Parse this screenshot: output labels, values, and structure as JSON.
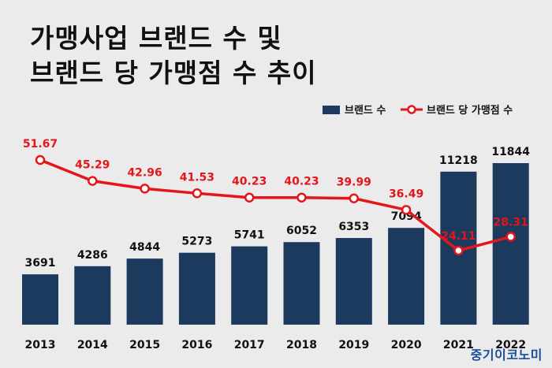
{
  "title_lines": [
    "가맹사업 브랜드 수 및",
    "브랜드 당 가맹점 수 추이"
  ],
  "watermark": "중기이코노미",
  "colors": {
    "bar": "#1b3a5e",
    "line": "#e4161b",
    "background": "#ebebeb",
    "text": "#111111"
  },
  "chart_data": {
    "type": "bar",
    "categories": [
      "2013",
      "2014",
      "2015",
      "2016",
      "2017",
      "2018",
      "2019",
      "2020",
      "2021",
      "2022"
    ],
    "series": [
      {
        "name": "브랜드 수",
        "type": "bar",
        "values": [
          3691,
          4286,
          4844,
          5273,
          5741,
          6052,
          6353,
          7094,
          11218,
          11844
        ]
      },
      {
        "name": "브랜드 당 가맹점 수",
        "type": "line",
        "values": [
          51.67,
          45.29,
          42.96,
          41.53,
          40.23,
          40.23,
          39.99,
          36.49,
          24.11,
          28.31
        ]
      }
    ],
    "value_labels": {
      "bars": [
        "3691",
        "4286",
        "4844",
        "5273",
        "5741",
        "6052",
        "6353",
        "7094",
        "11218",
        "11844"
      ],
      "line": [
        "51.67",
        "45.29",
        "42.96",
        "41.53",
        "40.23",
        "40.23",
        "39.99",
        "36.49",
        "24.11",
        "28.31"
      ]
    },
    "title": "가맹사업 브랜드 수 및 브랜드 당 가맹점 수 추이",
    "legend": {
      "placement": "top-right",
      "items": [
        "브랜드 수",
        "브랜드 당 가맹점 수"
      ]
    },
    "xlabel": "",
    "ylabel": "",
    "ylim_bars": [
      0,
      13000
    ],
    "ylim_line": [
      0,
      60
    ],
    "grid": false
  }
}
